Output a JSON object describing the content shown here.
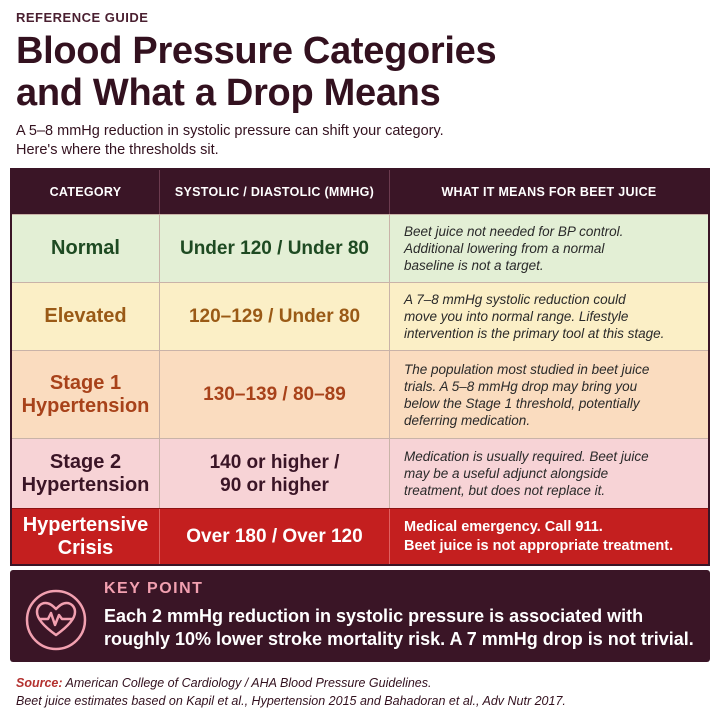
{
  "header": {
    "eyebrow": "REFERENCE GUIDE",
    "title_line1": "Blood Pressure Categories",
    "title_line2": "and What a Drop Means",
    "subtitle_line1": "A 5–8 mmHg reduction in systolic pressure can shift your category.",
    "subtitle_line2": "Here's where the thresholds sit."
  },
  "table": {
    "columns": [
      "CATEGORY",
      "SYSTOLIC / DIASTOLIC (MMHG)",
      "WHAT IT MEANS FOR BEET JUICE"
    ],
    "rows": [
      {
        "category": [
          "Normal"
        ],
        "values": [
          "Under 120 / Under 80"
        ],
        "meaning": [
          "Beet juice not needed for BP control.",
          "Additional lowering from a normal",
          "baseline is not a target."
        ]
      },
      {
        "category": [
          "Elevated"
        ],
        "values": [
          "120–129 / Under 80"
        ],
        "meaning": [
          "A 7–8 mmHg systolic reduction could",
          "move you into normal range. Lifestyle",
          "intervention is the primary tool at this stage."
        ]
      },
      {
        "category": [
          "Stage 1",
          "Hypertension"
        ],
        "values": [
          "130–139 / 80–89"
        ],
        "meaning": [
          "The population most studied in beet juice",
          "trials. A 5–8 mmHg drop may bring you",
          "below the Stage 1 threshold, potentially",
          "deferring medication."
        ]
      },
      {
        "category": [
          "Stage 2",
          "Hypertension"
        ],
        "values": [
          "140 or higher /",
          "90 or higher"
        ],
        "meaning": [
          "Medication is usually required. Beet juice",
          "may be a useful adjunct alongside",
          "treatment, but does not replace it."
        ]
      },
      {
        "category": [
          "Hypertensive",
          "Crisis"
        ],
        "values": [
          "Over 180 / Over 120"
        ],
        "meaning": [
          "Medical emergency. Call 911.",
          "Beet juice is not appropriate treatment."
        ]
      }
    ]
  },
  "key_point": {
    "icon": "heart-pulse-icon",
    "label": "KEY POINT",
    "text_line1": "Each 2 mmHg reduction in systolic pressure is associated with",
    "text_line2": "roughly 10% lower stroke mortality risk. A 7 mmHg drop is not trivial."
  },
  "footer": {
    "source_label": "Source:",
    "source_text": " American College of Cardiology / AHA Blood Pressure Guidelines.",
    "note": "Beet juice estimates based on Kapil et al., Hypertension 2015 and Bahadoran et al., Adv Nutr 2017."
  },
  "colors": {
    "dark_plum": "#3a1526",
    "normal_bg": "#e3efd5",
    "elevated_bg": "#fbefc6",
    "stage1_bg": "#fadcbf",
    "stage2_bg": "#f7d3d6",
    "crisis_bg": "#c41f1f",
    "key_label": "#f2a0b0"
  }
}
